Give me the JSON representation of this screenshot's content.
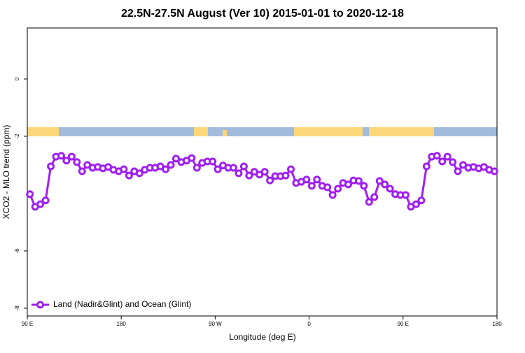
{
  "chart_data": {
    "type": "line",
    "title": "22.5N-27.5N August (Ver 10)   2015-01-01 to 2020-12-18",
    "x_label": "Longitude (deg E)",
    "y_label": "XCO2 - MLO trend (ppm)",
    "xlim": [
      90,
      540
    ],
    "ylim": [
      1.78,
      -8.27
    ],
    "xticks": [
      {
        "value": 90,
        "label": "90 E"
      },
      180,
      {
        "value": 270,
        "label": "90 W"
      },
      {
        "value": 360,
        "label": "0"
      },
      {
        "value": 450,
        "label": "90 E"
      },
      {
        "value": 540,
        "label": "180"
      }
    ],
    "yticks": [
      0,
      -2,
      -6,
      -8
    ],
    "x": [
      92.5,
      97.5,
      102.5,
      107.5,
      112.5,
      117.5,
      122.5,
      127.5,
      132.5,
      137.5,
      142.5,
      147.5,
      152.5,
      157.5,
      162.5,
      167.5,
      172.5,
      177.5,
      182.5,
      187.5,
      192.5,
      197.5,
      202.5,
      207.5,
      212.5,
      217.5,
      222.5,
      227.5,
      232.5,
      237.5,
      242.5,
      247.5,
      252.5,
      257.5,
      262.5,
      267.5,
      272.5,
      277.5,
      282.5,
      287.5,
      292.5,
      297.5,
      302.5,
      307.5,
      312.5,
      317.5,
      322.5,
      327.5,
      332.5,
      337.5,
      342.5,
      347.5,
      352.5,
      357.5,
      362.5,
      367.5,
      372.5,
      377.5,
      382.5,
      387.5,
      392.5,
      397.5,
      402.5,
      407.5,
      412.5,
      417.5,
      422.5,
      427.5,
      432.5,
      437.5,
      442.5,
      447.5,
      452.5,
      457.5,
      462.5,
      467.5,
      472.5,
      477.5,
      482.5,
      487.5,
      492.5,
      497.5,
      502.5,
      507.5,
      512.5,
      517.5,
      522.5,
      527.5,
      532.5,
      537.5
    ],
    "legend_position": "bottom-left",
    "series": [
      {
        "name": "Land (Nadir&Glint) and Ocean (Glint)",
        "color": "#a020f0",
        "values": [
          -4.02,
          -4.46,
          -4.37,
          -4.24,
          -3.05,
          -2.71,
          -2.68,
          -2.85,
          -2.71,
          -2.9,
          -3.22,
          -3.0,
          -3.1,
          -3.07,
          -3.12,
          -3.07,
          -3.17,
          -3.22,
          -3.15,
          -3.37,
          -3.22,
          -3.29,
          -3.17,
          -3.1,
          -3.1,
          -3.05,
          -3.15,
          -3.0,
          -2.78,
          -2.9,
          -2.85,
          -2.76,
          -3.1,
          -2.93,
          -2.88,
          -2.88,
          -3.15,
          -3.02,
          -3.1,
          -3.1,
          -3.29,
          -3.05,
          -3.37,
          -3.24,
          -3.34,
          -3.24,
          -3.54,
          -3.39,
          -3.39,
          -3.37,
          -3.15,
          -3.63,
          -3.59,
          -3.51,
          -3.73,
          -3.51,
          -3.73,
          -3.78,
          -4.05,
          -3.83,
          -3.63,
          -3.68,
          -3.54,
          -3.56,
          -3.73,
          -4.29,
          -4.12,
          -3.56,
          -3.68,
          -3.83,
          -4.02,
          -4.05,
          -4.05,
          -4.46,
          -4.37,
          -4.24,
          -3.05,
          -2.71,
          -2.68,
          -2.88,
          -2.71,
          -2.9,
          -3.22,
          -3.0,
          -3.1,
          -3.07,
          -3.12,
          -3.07,
          -3.17,
          -3.22
        ]
      }
    ]
  }
}
